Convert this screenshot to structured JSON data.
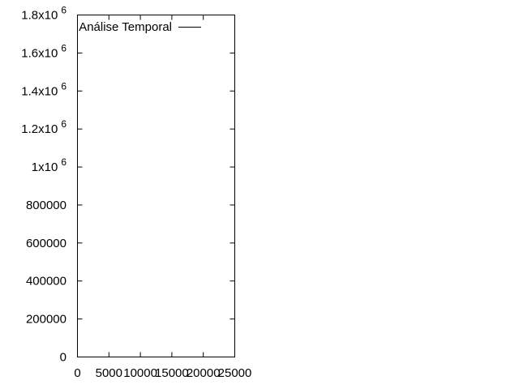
{
  "chart_data": {
    "type": "line",
    "title": "",
    "xlabel": "",
    "ylabel": "",
    "xlim": [
      0,
      25000
    ],
    "ylim": [
      0,
      1800000
    ],
    "x_ticks": [
      {
        "value": 0,
        "label": "0"
      },
      {
        "value": 5000,
        "label": "5000"
      },
      {
        "value": 10000,
        "label": "10000"
      },
      {
        "value": 15000,
        "label": "15000"
      },
      {
        "value": 20000,
        "label": "20000"
      },
      {
        "value": 25000,
        "label": "25000"
      }
    ],
    "y_ticks": [
      {
        "value": 0,
        "label": "0",
        "exp": ""
      },
      {
        "value": 200000,
        "label": "200000",
        "exp": ""
      },
      {
        "value": 400000,
        "label": "400000",
        "exp": ""
      },
      {
        "value": 600000,
        "label": "600000",
        "exp": ""
      },
      {
        "value": 800000,
        "label": "800000",
        "exp": ""
      },
      {
        "value": 1000000,
        "label": "1x10",
        "exp": "6"
      },
      {
        "value": 1200000,
        "label": "1.2x10",
        "exp": "6"
      },
      {
        "value": 1400000,
        "label": "1.4x10",
        "exp": "6"
      },
      {
        "value": 1600000,
        "label": "1.6x10",
        "exp": "6"
      },
      {
        "value": 1800000,
        "label": "1.8x10",
        "exp": "6"
      }
    ],
    "series": [
      {
        "name": "Análise Temporal",
        "color": "#000000",
        "x": [],
        "y": []
      }
    ],
    "legend": "top-right",
    "grid": false
  }
}
